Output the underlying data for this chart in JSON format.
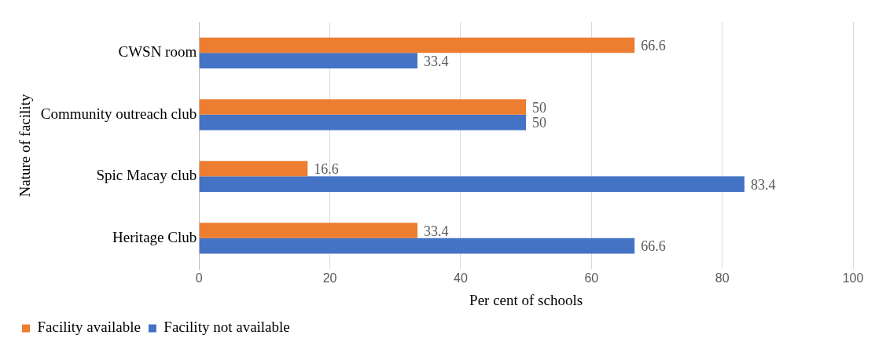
{
  "chart_data": {
    "type": "bar",
    "orientation": "horizontal",
    "xlabel": "Per cent of schools",
    "ylabel": "Nature of facility",
    "categories": [
      "CWSN room",
      "Community outreach club",
      "Spic Macay club",
      "Heritage Club"
    ],
    "series": [
      {
        "name": "Facility available",
        "color": "#ed7d31",
        "values": [
          66.6,
          50,
          16.6,
          33.4
        ]
      },
      {
        "name": "Facility not available",
        "color": "#4472c4",
        "values": [
          33.4,
          50,
          83.4,
          66.6
        ]
      }
    ],
    "xlim": [
      0,
      100
    ],
    "xticks": [
      0,
      20,
      40,
      60,
      80,
      100
    ],
    "grid": "x",
    "legend": "bottom left",
    "data_labels": true
  }
}
